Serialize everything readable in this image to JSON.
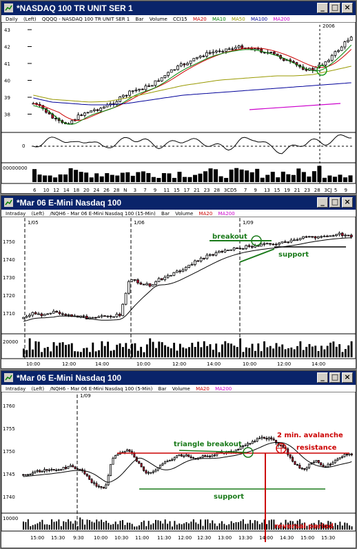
{
  "windows": [
    {
      "title": "*NASDAQ 100 TR UNIT SER 1",
      "subtitle": {
        "period": "Daily",
        "interval": "(Left)",
        "symbol": "QQQQ - NASDAQ 100 TR UNIT SER 1",
        "style": "Bar",
        "vol": "Volume",
        "cci": "CCI15",
        "ma20": "MA20",
        "ma10": "MA10",
        "ma50": "MA50",
        "ma100": "MA100",
        "ma200": "MA200"
      },
      "year_marker": "2006",
      "y_ticks": [
        "43",
        "42",
        "41",
        "40",
        "39",
        "38"
      ],
      "cci_zero": "0",
      "volume_label": "00000000",
      "x_ticks": [
        "6",
        "10",
        "12",
        "14",
        "18",
        "20",
        "24",
        "26",
        "28",
        "N",
        "3",
        "7",
        "9",
        "11",
        "15",
        "17",
        "21",
        "23",
        "28",
        "3CD",
        "5",
        "7",
        "9",
        "13",
        "15",
        "19",
        "21",
        "23",
        "28",
        "3CJ",
        "5",
        "9"
      ]
    },
    {
      "title": "*Mar 06  E-Mini Nasdaq 100",
      "subtitle": {
        "period": "Intraday",
        "interval": "(Left)",
        "symbol": "/NQH6 - Mar 06  E-Mini Nasdaq 100 (15-Min)",
        "style": "Bar",
        "vol": "Volume",
        "ma20": "MA20",
        "ma200": "MA200"
      },
      "date_markers": [
        "1/05",
        "1/06",
        "1/09"
      ],
      "y_ticks": [
        "1750",
        "1740",
        "1730",
        "1720",
        "1710"
      ],
      "volume_label": "20000",
      "x_ticks": [
        "10:00",
        "12:00",
        "14:00",
        "10:00",
        "12:00",
        "14:00",
        "10:00",
        "12:00",
        "14:00"
      ],
      "annotations": {
        "breakout": "breakout",
        "support": "support"
      }
    },
    {
      "title": "*Mar 06  E-Mini Nasdaq 100",
      "subtitle": {
        "period": "Intraday",
        "interval": "(Left)",
        "symbol": "/NQH6 - Mar 06  E-Mini Nasdaq 100 (5-Min)",
        "style": "Bar",
        "vol": "Volume",
        "ma20": "MA20",
        "ma200": "MA200"
      },
      "date_marker": "1/09",
      "y_ticks": [
        "1760",
        "1755",
        "1750",
        "1745",
        "1740"
      ],
      "volume_label": "10000",
      "x_ticks": [
        "15:00",
        "15:30",
        "9:30",
        "10:00",
        "10:30",
        "11:00",
        "11:30",
        "12:00",
        "12:30",
        "13:00",
        "13:30",
        "14:00",
        "14:30",
        "15:00",
        "15:30"
      ],
      "annotations": {
        "triangle_breakout": "triangle breakout",
        "avalanche": "2 min. avalanche",
        "resistance": "resistance",
        "support": "support",
        "reversal": "reversal period"
      }
    }
  ],
  "colors": {
    "titlebar": "#0a246a",
    "up_candle": "#ffffff",
    "down_candle": "#b01030",
    "annotation_green": "#1a7a1a",
    "annotation_red": "#cc0000",
    "ma20": "#cc0000",
    "ma10": "#008000",
    "ma50": "#999900",
    "ma100": "#000099",
    "ma200": "#cc00cc"
  }
}
